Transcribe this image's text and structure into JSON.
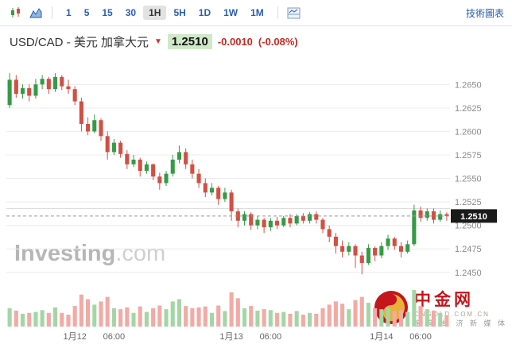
{
  "toolbar": {
    "timeframes": [
      "1",
      "5",
      "15",
      "30",
      "1H",
      "5H",
      "1D",
      "1W",
      "1M"
    ],
    "selected_timeframe": "1H",
    "tech_chart_link": "技術圖表",
    "icons": [
      "candlestick-chart-type",
      "area-chart-type",
      "indicators-panel"
    ]
  },
  "header": {
    "title": "USD/CAD - 美元 加拿大元",
    "direction": "down",
    "price": "1.2510",
    "change": "-0.0010",
    "change_percent": "(-0.08%)"
  },
  "watermarks": {
    "investing": {
      "main": "Investing",
      "suffix": ".com"
    },
    "cngold": {
      "name": "中金网",
      "domain": "CNGOLD.COM.CN",
      "slogan": "金 融 经 济 新 媒 体"
    }
  },
  "colors": {
    "up": "#359b46",
    "down": "#d24f43",
    "vol_up": "#a3d6a4",
    "vol_down": "#f2aaa5",
    "grid": "#ececec",
    "axis_text": "#8a8a8a",
    "x_text": "#666666",
    "dashed_line": "#999999",
    "price_tag_bg": "#1a1a1a",
    "price_tag_text": "#ffffff",
    "accent_blue": "#2a5db0",
    "change_red": "#c22a22",
    "price_pill_bg": "#cfe9c8"
  },
  "chart_data": {
    "type": "candlestick",
    "symbol": "USD/CAD",
    "interval": "1H",
    "title": "USD/CAD - 美元 加拿大元 1H",
    "current_price": 1.251,
    "reference_line": 1.2518,
    "y_axis": {
      "min": 1.2438,
      "max": 1.2668,
      "ticks": [
        1.245,
        1.2475,
        1.25,
        1.2525,
        1.255,
        1.2575,
        1.26,
        1.2625,
        1.265
      ]
    },
    "x_ticks": [
      {
        "i": 10,
        "label": "1月12"
      },
      {
        "i": 16,
        "label": "06:00"
      },
      {
        "i": 34,
        "label": "1月13"
      },
      {
        "i": 40,
        "label": "06:00"
      },
      {
        "i": 57,
        "label": "1月14"
      },
      {
        "i": 63,
        "label": "06:00"
      }
    ],
    "candles_format": [
      "open",
      "high",
      "low",
      "close",
      "volume"
    ],
    "candles": [
      [
        1.2628,
        1.2662,
        1.2625,
        1.2655,
        40
      ],
      [
        1.2655,
        1.266,
        1.2636,
        1.264,
        35
      ],
      [
        1.264,
        1.265,
        1.2635,
        1.2646,
        28
      ],
      [
        1.2646,
        1.265,
        1.2632,
        1.2638,
        30
      ],
      [
        1.2638,
        1.2656,
        1.2635,
        1.265,
        32
      ],
      [
        1.265,
        1.266,
        1.2645,
        1.2656,
        36
      ],
      [
        1.2656,
        1.2658,
        1.264,
        1.2645,
        30
      ],
      [
        1.2645,
        1.2662,
        1.2642,
        1.2658,
        42
      ],
      [
        1.2658,
        1.266,
        1.2644,
        1.2648,
        30
      ],
      [
        1.2648,
        1.2655,
        1.264,
        1.2645,
        26
      ],
      [
        1.2645,
        1.2648,
        1.2628,
        1.2632,
        45
      ],
      [
        1.2632,
        1.2636,
        1.26,
        1.2608,
        70
      ],
      [
        1.2608,
        1.2615,
        1.2596,
        1.26,
        60
      ],
      [
        1.26,
        1.2618,
        1.2598,
        1.2612,
        48
      ],
      [
        1.2612,
        1.2614,
        1.259,
        1.2595,
        55
      ],
      [
        1.2595,
        1.26,
        1.257,
        1.2578,
        65
      ],
      [
        1.2578,
        1.2592,
        1.2575,
        1.2588,
        40
      ],
      [
        1.2588,
        1.259,
        1.2572,
        1.2576,
        38
      ],
      [
        1.2576,
        1.258,
        1.256,
        1.2565,
        42
      ],
      [
        1.2565,
        1.2575,
        1.2562,
        1.257,
        30
      ],
      [
        1.257,
        1.2572,
        1.2552,
        1.2558,
        44
      ],
      [
        1.2558,
        1.2568,
        1.2555,
        1.2565,
        32
      ],
      [
        1.2565,
        1.2566,
        1.2548,
        1.2552,
        40
      ],
      [
        1.2552,
        1.2556,
        1.2538,
        1.2545,
        46
      ],
      [
        1.2545,
        1.2558,
        1.2542,
        1.2555,
        38
      ],
      [
        1.2555,
        1.2575,
        1.2552,
        1.257,
        55
      ],
      [
        1.257,
        1.2585,
        1.2566,
        1.2578,
        60
      ],
      [
        1.2578,
        1.2582,
        1.256,
        1.2565,
        45
      ],
      [
        1.2565,
        1.257,
        1.255,
        1.2555,
        40
      ],
      [
        1.2555,
        1.256,
        1.254,
        1.2545,
        42
      ],
      [
        1.2545,
        1.255,
        1.253,
        1.2535,
        44
      ],
      [
        1.2535,
        1.2545,
        1.2532,
        1.254,
        30
      ],
      [
        1.254,
        1.2542,
        1.2522,
        1.2528,
        46
      ],
      [
        1.2528,
        1.254,
        1.2525,
        1.2535,
        34
      ],
      [
        1.2535,
        1.2538,
        1.2505,
        1.2515,
        75
      ],
      [
        1.2515,
        1.2518,
        1.2498,
        1.2505,
        62
      ],
      [
        1.2505,
        1.2515,
        1.25,
        1.2512,
        40
      ],
      [
        1.2512,
        1.2514,
        1.2495,
        1.25,
        45
      ],
      [
        1.25,
        1.251,
        1.2496,
        1.2506,
        35
      ],
      [
        1.2506,
        1.2508,
        1.2492,
        1.2498,
        38
      ],
      [
        1.2498,
        1.2508,
        1.2494,
        1.2505,
        36
      ],
      [
        1.2505,
        1.2509,
        1.2496,
        1.25,
        30
      ],
      [
        1.25,
        1.251,
        1.2498,
        1.2508,
        32
      ],
      [
        1.2508,
        1.2512,
        1.2498,
        1.2502,
        28
      ],
      [
        1.2502,
        1.2512,
        1.25,
        1.251,
        34
      ],
      [
        1.251,
        1.2513,
        1.2502,
        1.2505,
        26
      ],
      [
        1.2505,
        1.2514,
        1.2502,
        1.2512,
        30
      ],
      [
        1.2512,
        1.2515,
        1.2502,
        1.2506,
        28
      ],
      [
        1.2506,
        1.2508,
        1.2492,
        1.2496,
        40
      ],
      [
        1.2496,
        1.25,
        1.2482,
        1.2488,
        48
      ],
      [
        1.2488,
        1.2492,
        1.247,
        1.2478,
        55
      ],
      [
        1.2478,
        1.2484,
        1.2466,
        1.2472,
        50
      ],
      [
        1.2472,
        1.2482,
        1.2468,
        1.2478,
        38
      ],
      [
        1.2478,
        1.248,
        1.2455,
        1.2468,
        58
      ],
      [
        1.2468,
        1.2472,
        1.2448,
        1.246,
        65
      ],
      [
        1.246,
        1.248,
        1.2458,
        1.2476,
        52
      ],
      [
        1.2476,
        1.2478,
        1.2462,
        1.2468,
        40
      ],
      [
        1.2468,
        1.2482,
        1.2465,
        1.2478,
        38
      ],
      [
        1.2478,
        1.249,
        1.2474,
        1.2486,
        42
      ],
      [
        1.2486,
        1.2488,
        1.2474,
        1.2478,
        34
      ],
      [
        1.2478,
        1.2482,
        1.2466,
        1.2472,
        36
      ],
      [
        1.2472,
        1.2484,
        1.247,
        1.248,
        32
      ],
      [
        1.248,
        1.2522,
        1.2478,
        1.2516,
        80
      ],
      [
        1.2516,
        1.252,
        1.2504,
        1.2508,
        45
      ],
      [
        1.2508,
        1.2518,
        1.2505,
        1.2515,
        38
      ],
      [
        1.2515,
        1.2518,
        1.2502,
        1.2506,
        35
      ],
      [
        1.2506,
        1.2516,
        1.2504,
        1.2512,
        30
      ],
      [
        1.2512,
        1.2514,
        1.2505,
        1.251,
        25
      ]
    ]
  }
}
